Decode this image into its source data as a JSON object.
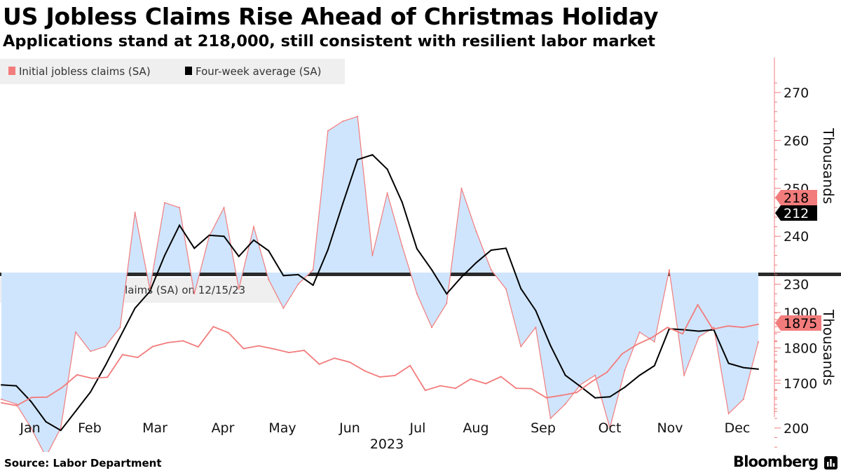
{
  "header": {
    "title": "US Jobless Claims Rise Ahead of Christmas Holiday",
    "subtitle": "Applications stand at 218,000, still consistent with resilient labor market"
  },
  "footer": {
    "source": "Source: Labor Department",
    "brand": "Bloomberg",
    "brand_icon": "bloomberg-terminal-icon"
  },
  "colors": {
    "initial": "#f27c7c",
    "average": "#000000",
    "fill": "#cfe5fd",
    "continuing": "#f27c7c",
    "legend_bg": "#efefef"
  },
  "chart_data": [
    {
      "type": "area",
      "legend": [
        {
          "label": "Initial jobless claims (SA)",
          "color": "#f27c7c"
        },
        {
          "label": "Four-week average (SA)",
          "color": "#000000"
        }
      ],
      "ylabel": "Thousands",
      "ylim": [
        186,
        273
      ],
      "yticks": [
        190,
        200,
        230,
        240,
        250,
        260,
        270
      ],
      "series": [
        {
          "name": "Initial jobless claims (SA)",
          "values": [
            206,
            205,
            200,
            194,
            200,
            220,
            216,
            217,
            221,
            245,
            229,
            247,
            246,
            228,
            240,
            246,
            229,
            242,
            231,
            225,
            230,
            233,
            262,
            264,
            265,
            236,
            249,
            238,
            228,
            221,
            226,
            250,
            241,
            233,
            229,
            217,
            221,
            202,
            205,
            209,
            211,
            200,
            212,
            220,
            218,
            233,
            211,
            219,
            221,
            203,
            206,
            218
          ]
        },
        {
          "name": "Four-week average (SA)",
          "values": [
            209,
            208.8,
            205.5,
            201.3,
            199.5,
            203.5,
            207.5,
            213,
            219,
            225,
            228.5,
            236,
            242.3,
            237.5,
            240.2,
            240,
            235.8,
            239.2,
            237,
            231.8,
            232,
            229.8,
            237.2,
            246.8,
            256,
            257,
            254,
            247.1,
            237.4,
            233,
            228,
            231.5,
            234.5,
            237.1,
            237.5,
            229.1,
            224.5,
            217.2,
            211,
            208.7,
            206.3,
            206.5,
            208.5,
            211,
            213,
            220.7,
            220.5,
            220.2,
            220.5,
            213.5,
            212.6,
            212.3
          ]
        }
      ],
      "last_labels": [
        {
          "series": "Initial jobless claims (SA)",
          "text": "218"
        },
        {
          "series": "Four-week average (SA)",
          "text": "212"
        }
      ]
    },
    {
      "type": "line",
      "legend": [
        {
          "label": "Continuing jobless claims (SA) on 12/15/23",
          "color": "#f27c7c"
        }
      ],
      "ylabel": "Thousands",
      "ylim": [
        1610,
        1925
      ],
      "yticks": [
        1700,
        1800,
        1900
      ],
      "series": [
        {
          "name": "Continuing jobless claims (SA)",
          "values": [
            1645,
            1637,
            1660,
            1661,
            1688,
            1724,
            1714,
            1717,
            1781,
            1773,
            1804,
            1815,
            1820,
            1803,
            1860,
            1843,
            1798,
            1806,
            1797,
            1787,
            1793,
            1754,
            1771,
            1760,
            1735,
            1718,
            1722,
            1750,
            1680,
            1693,
            1686,
            1712,
            1699,
            1719,
            1686,
            1685,
            1659,
            1666,
            1674,
            1705,
            1731,
            1783,
            1810,
            1830,
            1858,
            1840,
            1922,
            1853,
            1862,
            1858,
            1867
          ]
        }
      ],
      "last_labels": [
        {
          "series": "Continuing jobless claims (SA)",
          "text": "1875"
        }
      ]
    }
  ],
  "x_axis": {
    "months": [
      "Jan",
      "Feb",
      "Mar",
      "Apr",
      "May",
      "Jun",
      "Jul",
      "Aug",
      "Sep",
      "Oct",
      "Nov",
      "Dec"
    ],
    "year": "2023"
  }
}
